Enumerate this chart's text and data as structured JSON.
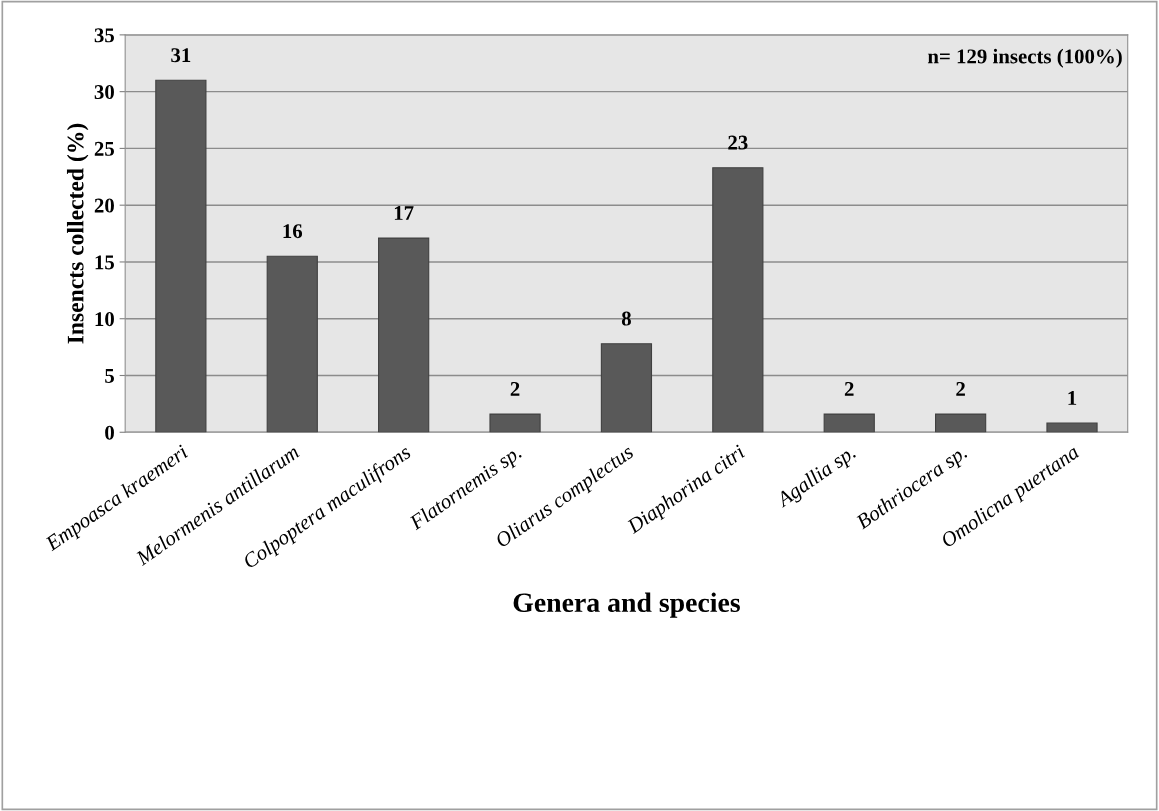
{
  "chart_data": {
    "type": "bar",
    "categories": [
      "Empoasca kraemeri",
      "Melormenis antillarum",
      "Colpoptera maculifrons",
      "Flatornemis sp.",
      "Oliarus complectus",
      "Diaphorina citri",
      "Agallia sp.",
      "Bothriocera sp.",
      "Omolicna puertana"
    ],
    "values": [
      31,
      15.5,
      17.1,
      1.6,
      7.8,
      23.3,
      1.6,
      1.6,
      0.8
    ],
    "value_labels": [
      "31",
      "16",
      "17",
      "2",
      "8",
      "23",
      "2",
      "2",
      "1"
    ],
    "color": "#595959",
    "xlabel": "Genera and species",
    "ylabel": "Insencts collected (%)",
    "annotations": [
      "n= 129 insects (100%)"
    ],
    "ylim": [
      0,
      35
    ],
    "yticks": [
      0,
      5,
      10,
      15,
      20,
      25,
      30,
      35
    ],
    "grid": "y",
    "legend": false
  }
}
